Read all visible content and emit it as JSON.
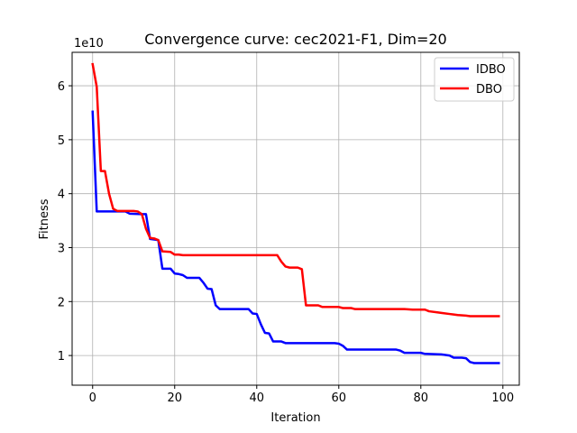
{
  "chart_data": {
    "type": "line",
    "title": "Convergence curve:  cec2021-F1, Dim=20",
    "xlabel": "Iteration",
    "ylabel": "Fitness",
    "y_offset_label": "1e10",
    "xlim": [
      -5,
      104
    ],
    "ylim": [
      0.45,
      6.62
    ],
    "x_ticks": [
      0,
      20,
      40,
      60,
      80,
      100
    ],
    "x_tick_labels": [
      "0",
      "20",
      "40",
      "60",
      "80",
      "100"
    ],
    "y_ticks": [
      1,
      2,
      3,
      4,
      5,
      6
    ],
    "y_tick_labels": [
      "1",
      "2",
      "3",
      "4",
      "5",
      "6"
    ],
    "grid": true,
    "legend_position": "top-right",
    "series": [
      {
        "name": "IDBO",
        "color": "#0000ff",
        "points": [
          [
            0,
            5.52
          ],
          [
            1,
            3.67
          ],
          [
            8,
            3.67
          ],
          [
            9,
            3.63
          ],
          [
            12,
            3.62
          ],
          [
            13,
            3.62
          ],
          [
            14,
            3.16
          ],
          [
            16,
            3.14
          ],
          [
            17,
            2.61
          ],
          [
            19,
            2.61
          ],
          [
            20,
            2.52
          ],
          [
            21,
            2.51
          ],
          [
            22,
            2.49
          ],
          [
            23,
            2.44
          ],
          [
            26,
            2.44
          ],
          [
            27,
            2.35
          ],
          [
            28,
            2.24
          ],
          [
            29,
            2.23
          ],
          [
            30,
            1.93
          ],
          [
            31,
            1.86
          ],
          [
            38,
            1.86
          ],
          [
            39,
            1.78
          ],
          [
            40,
            1.77
          ],
          [
            41,
            1.58
          ],
          [
            42,
            1.42
          ],
          [
            43,
            1.41
          ],
          [
            44,
            1.26
          ],
          [
            46,
            1.26
          ],
          [
            47,
            1.23
          ],
          [
            59,
            1.23
          ],
          [
            60,
            1.22
          ],
          [
            61,
            1.18
          ],
          [
            62,
            1.11
          ],
          [
            74,
            1.11
          ],
          [
            75,
            1.09
          ],
          [
            76,
            1.05
          ],
          [
            80,
            1.05
          ],
          [
            81,
            1.03
          ],
          [
            85,
            1.02
          ],
          [
            86,
            1.01
          ],
          [
            87,
            1.0
          ],
          [
            88,
            0.96
          ],
          [
            90,
            0.96
          ],
          [
            91,
            0.95
          ],
          [
            92,
            0.88
          ],
          [
            93,
            0.86
          ],
          [
            94,
            0.86
          ],
          [
            95,
            0.86
          ],
          [
            99,
            0.86
          ]
        ]
      },
      {
        "name": "DBO",
        "color": "#ff0000",
        "points": [
          [
            0,
            6.4
          ],
          [
            1,
            5.98
          ],
          [
            2,
            4.42
          ],
          [
            3,
            4.42
          ],
          [
            4,
            4.0
          ],
          [
            5,
            3.72
          ],
          [
            6,
            3.68
          ],
          [
            10,
            3.68
          ],
          [
            11,
            3.67
          ],
          [
            12,
            3.62
          ],
          [
            13,
            3.35
          ],
          [
            14,
            3.18
          ],
          [
            15,
            3.17
          ],
          [
            16,
            3.14
          ],
          [
            17,
            2.93
          ],
          [
            19,
            2.92
          ],
          [
            20,
            2.87
          ],
          [
            21,
            2.87
          ],
          [
            22,
            2.86
          ],
          [
            45,
            2.86
          ],
          [
            46,
            2.74
          ],
          [
            47,
            2.65
          ],
          [
            48,
            2.63
          ],
          [
            50,
            2.63
          ],
          [
            51,
            2.6
          ],
          [
            52,
            1.93
          ],
          [
            55,
            1.93
          ],
          [
            56,
            1.9
          ],
          [
            60,
            1.9
          ],
          [
            61,
            1.88
          ],
          [
            63,
            1.88
          ],
          [
            64,
            1.86
          ],
          [
            76,
            1.86
          ],
          [
            78,
            1.85
          ],
          [
            80,
            1.85
          ],
          [
            81,
            1.85
          ],
          [
            82,
            1.82
          ],
          [
            84,
            1.8
          ],
          [
            85,
            1.79
          ],
          [
            87,
            1.77
          ],
          [
            88,
            1.76
          ],
          [
            89,
            1.75
          ],
          [
            91,
            1.74
          ],
          [
            92,
            1.73
          ],
          [
            99,
            1.73
          ]
        ]
      }
    ]
  }
}
